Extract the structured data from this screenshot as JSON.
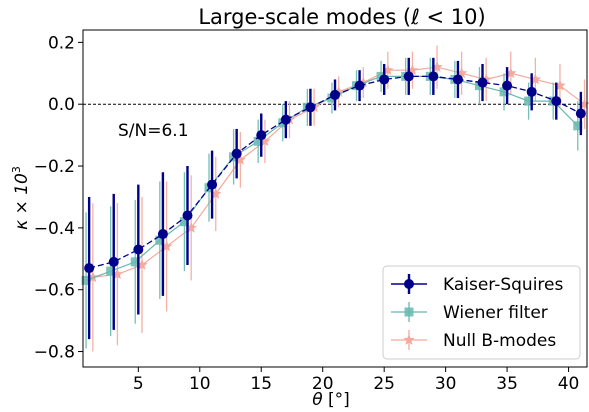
{
  "chart_data": {
    "type": "line",
    "title_prefix": "Large-scale modes (",
    "title_ell": "ℓ",
    "title_suffix": " < 10)",
    "xlabel_symbol": "θ",
    "xlabel_unit": " [°]",
    "ylabel_kappa": "κ × 10",
    "ylabel_exp": "3",
    "xlim": [
      0.5,
      41.5
    ],
    "ylim": [
      -0.85,
      0.24
    ],
    "xticks": [
      5,
      10,
      15,
      20,
      25,
      30,
      35,
      40
    ],
    "xtick_labels": [
      "5",
      "10",
      "15",
      "20",
      "25",
      "30",
      "35",
      "40"
    ],
    "yticks": [
      -0.8,
      -0.6,
      -0.4,
      -0.2,
      0.0,
      0.2
    ],
    "ytick_labels": [
      "−0.8",
      "−0.6",
      "−0.4",
      "−0.2",
      "0.0",
      "0.2"
    ],
    "annotation": "S/N=6.1",
    "legend_position": "lower-right",
    "reference_line_y": 0.0,
    "series": [
      {
        "name": "Kaiser-Squires",
        "color": "#00008b",
        "marker": "circle",
        "line_style": "dashed",
        "x_offset": 0.0,
        "x": [
          1,
          3,
          5,
          7,
          9,
          11,
          13,
          15,
          17,
          19,
          21,
          23,
          25,
          27,
          29,
          31,
          33,
          35,
          37,
          39,
          41
        ],
        "y": [
          -0.53,
          -0.51,
          -0.47,
          -0.42,
          -0.36,
          -0.26,
          -0.16,
          -0.1,
          -0.05,
          -0.01,
          0.03,
          0.06,
          0.08,
          0.09,
          0.09,
          0.08,
          0.07,
          0.06,
          0.04,
          0.01,
          -0.03
        ],
        "err": [
          0.23,
          0.22,
          0.21,
          0.2,
          0.16,
          0.11,
          0.08,
          0.07,
          0.06,
          0.06,
          0.05,
          0.05,
          0.05,
          0.06,
          0.06,
          0.06,
          0.06,
          0.06,
          0.06,
          0.06,
          0.07
        ]
      },
      {
        "name": "Wiener filter",
        "color": "#66b8b0",
        "marker": "square",
        "line_style": "solid",
        "x_offset": -0.25,
        "x": [
          1,
          3,
          5,
          7,
          9,
          11,
          13,
          15,
          17,
          19,
          21,
          23,
          25,
          27,
          29,
          31,
          33,
          35,
          37,
          39,
          41
        ],
        "y": [
          -0.57,
          -0.54,
          -0.51,
          -0.44,
          -0.38,
          -0.27,
          -0.17,
          -0.12,
          -0.06,
          -0.01,
          0.02,
          0.06,
          0.09,
          0.09,
          0.09,
          0.08,
          0.06,
          0.04,
          0.01,
          0.01,
          -0.07
        ],
        "err": [
          0.22,
          0.21,
          0.2,
          0.19,
          0.16,
          0.11,
          0.09,
          0.07,
          0.06,
          0.06,
          0.05,
          0.05,
          0.05,
          0.06,
          0.06,
          0.06,
          0.06,
          0.06,
          0.06,
          0.06,
          0.08
        ]
      },
      {
        "name": "Null B-modes",
        "color": "#f4a99c",
        "marker": "star",
        "line_style": "solid",
        "x_offset": 0.3,
        "x": [
          1,
          3,
          5,
          7,
          9,
          11,
          13,
          15,
          17,
          19,
          21,
          23,
          25,
          27,
          29,
          31,
          33,
          35,
          37,
          39,
          41
        ],
        "y": [
          -0.56,
          -0.55,
          -0.52,
          -0.46,
          -0.4,
          -0.29,
          -0.18,
          -0.12,
          -0.05,
          -0.01,
          0.04,
          0.07,
          0.11,
          0.11,
          0.12,
          0.1,
          0.08,
          0.1,
          0.08,
          0.06,
          0.0
        ],
        "err": [
          0.24,
          0.23,
          0.22,
          0.21,
          0.17,
          0.12,
          0.09,
          0.07,
          0.06,
          0.06,
          0.05,
          0.05,
          0.06,
          0.06,
          0.07,
          0.07,
          0.07,
          0.07,
          0.07,
          0.07,
          0.08
        ]
      }
    ]
  }
}
